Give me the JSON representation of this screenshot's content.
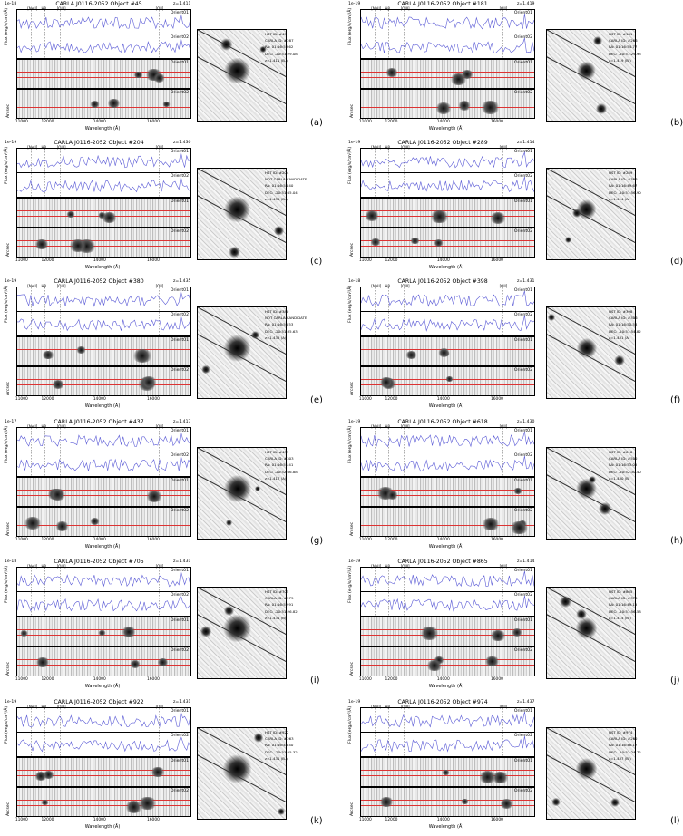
{
  "panels": [
    {
      "title": "CARLA J0116-2052 Object #45",
      "z": "z=1.411",
      "exp": "1e-18",
      "letter": "(a)",
      "info": [
        "HST ID: #45",
        "CARLA ID: #287",
        "RA: 01:16:53.62",
        "DEC: -20:51:29.08",
        "z=1.411 (B-)"
      ]
    },
    {
      "title": "CARLA J0116-2052 Object #181",
      "z": "z=1.419",
      "exp": "1e-19",
      "letter": "(b)",
      "info": [
        "HST ID: #181",
        "CARLA ID: #266",
        "RA: 01:16:54.77",
        "DEC: -20:51:29.93",
        "z=1.419 (B-)"
      ]
    },
    {
      "title": "CARLA J0116-2052 Object #204",
      "z": "z=1.430",
      "exp": "1e-19",
      "letter": "(c)",
      "info": [
        "HST ID: #204",
        "NOT CARLA CANDIDATE",
        "RA: 01:16:54.40",
        "DEC: -20:51:05.04",
        "z=1.430 (B-)"
      ]
    },
    {
      "title": "CARLA J0116-2052 Object #289",
      "z": "z=1.414",
      "exp": "1e-19",
      "letter": "(d)",
      "info": [
        "HST ID: #289",
        "CARLA ID: #386",
        "RA: 01:16:49.67",
        "DEC: -20:51:56.90",
        "z=1.414 (A)"
      ]
    },
    {
      "title": "CARLA J0116-2052 Object #380",
      "z": "z=1.435",
      "exp": "1e-19",
      "letter": "(e)",
      "info": [
        "HST ID: #380",
        "NOT CARLA CANDIDATE",
        "RA: 01:16:50.53",
        "DEC: -20:51:35.63",
        "z=1.435 (A)"
      ]
    },
    {
      "title": "CARLA J0116-2052 Object #398",
      "z": "z=1.431",
      "exp": "1e-18",
      "letter": "(f)",
      "info": [
        "HST ID: #398",
        "CARLA ID: #306",
        "RA: 01:16:50.58",
        "DEC: -20:51:54.82",
        "z=1.431 (A)"
      ]
    },
    {
      "title": "CARLA J0116-2052 Object #437",
      "z": "z=1.417",
      "exp": "1e-17",
      "letter": "(g)",
      "info": [
        "HST ID: #437",
        "CARLA ID: #303",
        "RA: 01:16:51.41",
        "DEC: -20:52:06.88",
        "z=1.417 (A)"
      ]
    },
    {
      "title": "CARLA J0116-2052 Object #618",
      "z": "z=1.430",
      "exp": "1e-19",
      "letter": "(h)",
      "info": [
        "HST ID: #618",
        "CARLA ID: #502",
        "RA: 01:16:53.05",
        "DEC: -20:52:30.40",
        "z=1.430 (B)"
      ]
    },
    {
      "title": "CARLA J0116-2052 Object #705",
      "z": "z=1.431",
      "exp": "1e-18",
      "letter": "(i)",
      "info": [
        "HST ID: #705",
        "CARLA ID: #275",
        "RA: 01:16:52.91",
        "DEC: -20:51:26.82",
        "z=1.431 (B)"
      ]
    },
    {
      "title": "CARLA J0116-2052 Object #865",
      "z": "z=1.414",
      "exp": "1e-19",
      "letter": "(j)",
      "info": [
        "HST ID: #865",
        "CARLA ID: #375",
        "RA: 01:16:49.15",
        "DEC: -20:51:56.58",
        "z=1.414 (B-)"
      ]
    },
    {
      "title": "CARLA J0116-2052 Object #922",
      "z": "z=1.431",
      "exp": "1e-19",
      "letter": "(k)",
      "info": [
        "HST ID: #922",
        "CARLA ID: #263",
        "RA: 01:16:48.40",
        "DEC: -20:51:25.32",
        "z=1.431 (B-)"
      ]
    },
    {
      "title": "CARLA J0116-2052 Object #974",
      "z": "z=1.437",
      "exp": "1e-19",
      "letter": "(l)",
      "info": [
        "HST ID: #974",
        "CARLA ID: #262",
        "RA: 01:16:48.17",
        "DEC: -20:51:24.72",
        "z=1.437 (B-)"
      ]
    }
  ],
  "labels": {
    "orient1": "Orient01",
    "orient2": "Orient02",
    "flux_ylabel": "Flux",
    "flux_unit": "(erg/s/cm²/Å)",
    "arcsec": "Arcsec",
    "wavelength": "Wavelength (Å)",
    "xticks": [
      "11000",
      "12000",
      "14000",
      "16000"
    ],
    "lines": [
      "[NeII]",
      "Hβ",
      "[OIII]",
      "[OII]"
    ]
  }
}
